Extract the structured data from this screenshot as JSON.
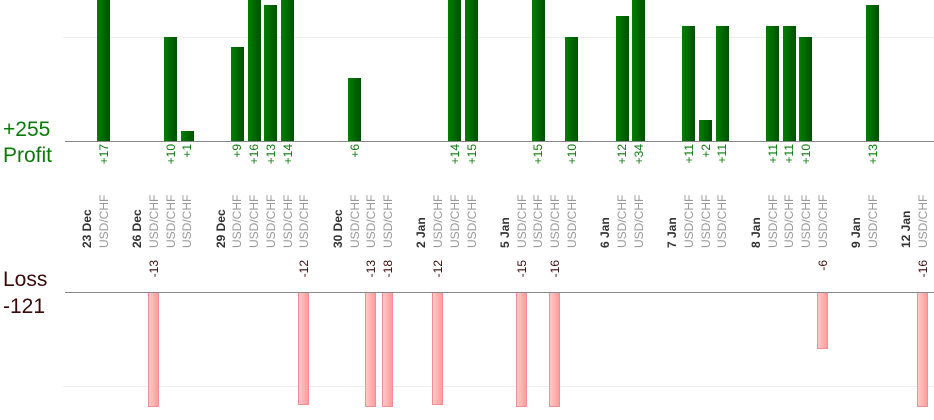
{
  "summary": {
    "profit_total": "+255",
    "profit_label": "Profit",
    "loss_label": "Loss",
    "loss_total": "-121"
  },
  "colors": {
    "profit": "#007000",
    "loss": "#ffb0b0"
  },
  "chart_data": {
    "type": "bar",
    "title": "",
    "profit_gridline_value": 10,
    "loss_gridline_value": -10,
    "columns": [
      {
        "date": "23 Dec"
      },
      {
        "pair": "USD/CHF",
        "value": 17
      },
      {
        "date": "26 Dec"
      },
      {
        "pair": "USD/CHF",
        "value": -13
      },
      {
        "pair": "USD/CHF",
        "value": 10
      },
      {
        "pair": "USD/CHF",
        "value": 1
      },
      {
        "date": "29 Dec"
      },
      {
        "pair": "USD/CHF",
        "value": 9
      },
      {
        "pair": "USD/CHF",
        "value": 16
      },
      {
        "pair": "USD/CHF",
        "value": 13
      },
      {
        "pair": "USD/CHF",
        "value": 14
      },
      {
        "pair": "USD/CHF",
        "value": -12
      },
      {
        "date": "30 Dec"
      },
      {
        "pair": "USD/CHF",
        "value": 6
      },
      {
        "pair": "USD/CHF",
        "value": -13
      },
      {
        "pair": "USD/CHF",
        "value": -18
      },
      {
        "date": "2 Jan"
      },
      {
        "pair": "USD/CHF",
        "value": -12
      },
      {
        "pair": "USD/CHF",
        "value": 14
      },
      {
        "pair": "USD/CHF",
        "value": 15
      },
      {
        "date": "5 Jan"
      },
      {
        "pair": "USD/CHF",
        "value": -15
      },
      {
        "pair": "USD/CHF",
        "value": 15
      },
      {
        "pair": "USD/CHF",
        "value": -16
      },
      {
        "pair": "USD/CHF",
        "value": 10
      },
      {
        "date": "6 Jan"
      },
      {
        "pair": "USD/CHF",
        "value": 12
      },
      {
        "pair": "USD/CHF",
        "value": 34
      },
      {
        "date": "7 Jan"
      },
      {
        "pair": "USD/CHF",
        "value": 11
      },
      {
        "pair": "USD/CHF",
        "value": 2
      },
      {
        "pair": "USD/CHF",
        "value": 11
      },
      {
        "date": "8 Jan"
      },
      {
        "pair": "USD/CHF",
        "value": 11
      },
      {
        "pair": "USD/CHF",
        "value": 11
      },
      {
        "pair": "USD/CHF",
        "value": 10
      },
      {
        "pair": "USD/CHF",
        "value": -6
      },
      {
        "date": "9 Jan"
      },
      {
        "pair": "USD/CHF",
        "value": 13
      },
      {
        "date": "12 Jan"
      },
      {
        "pair": "USD/CHF",
        "value": -16
      }
    ]
  }
}
